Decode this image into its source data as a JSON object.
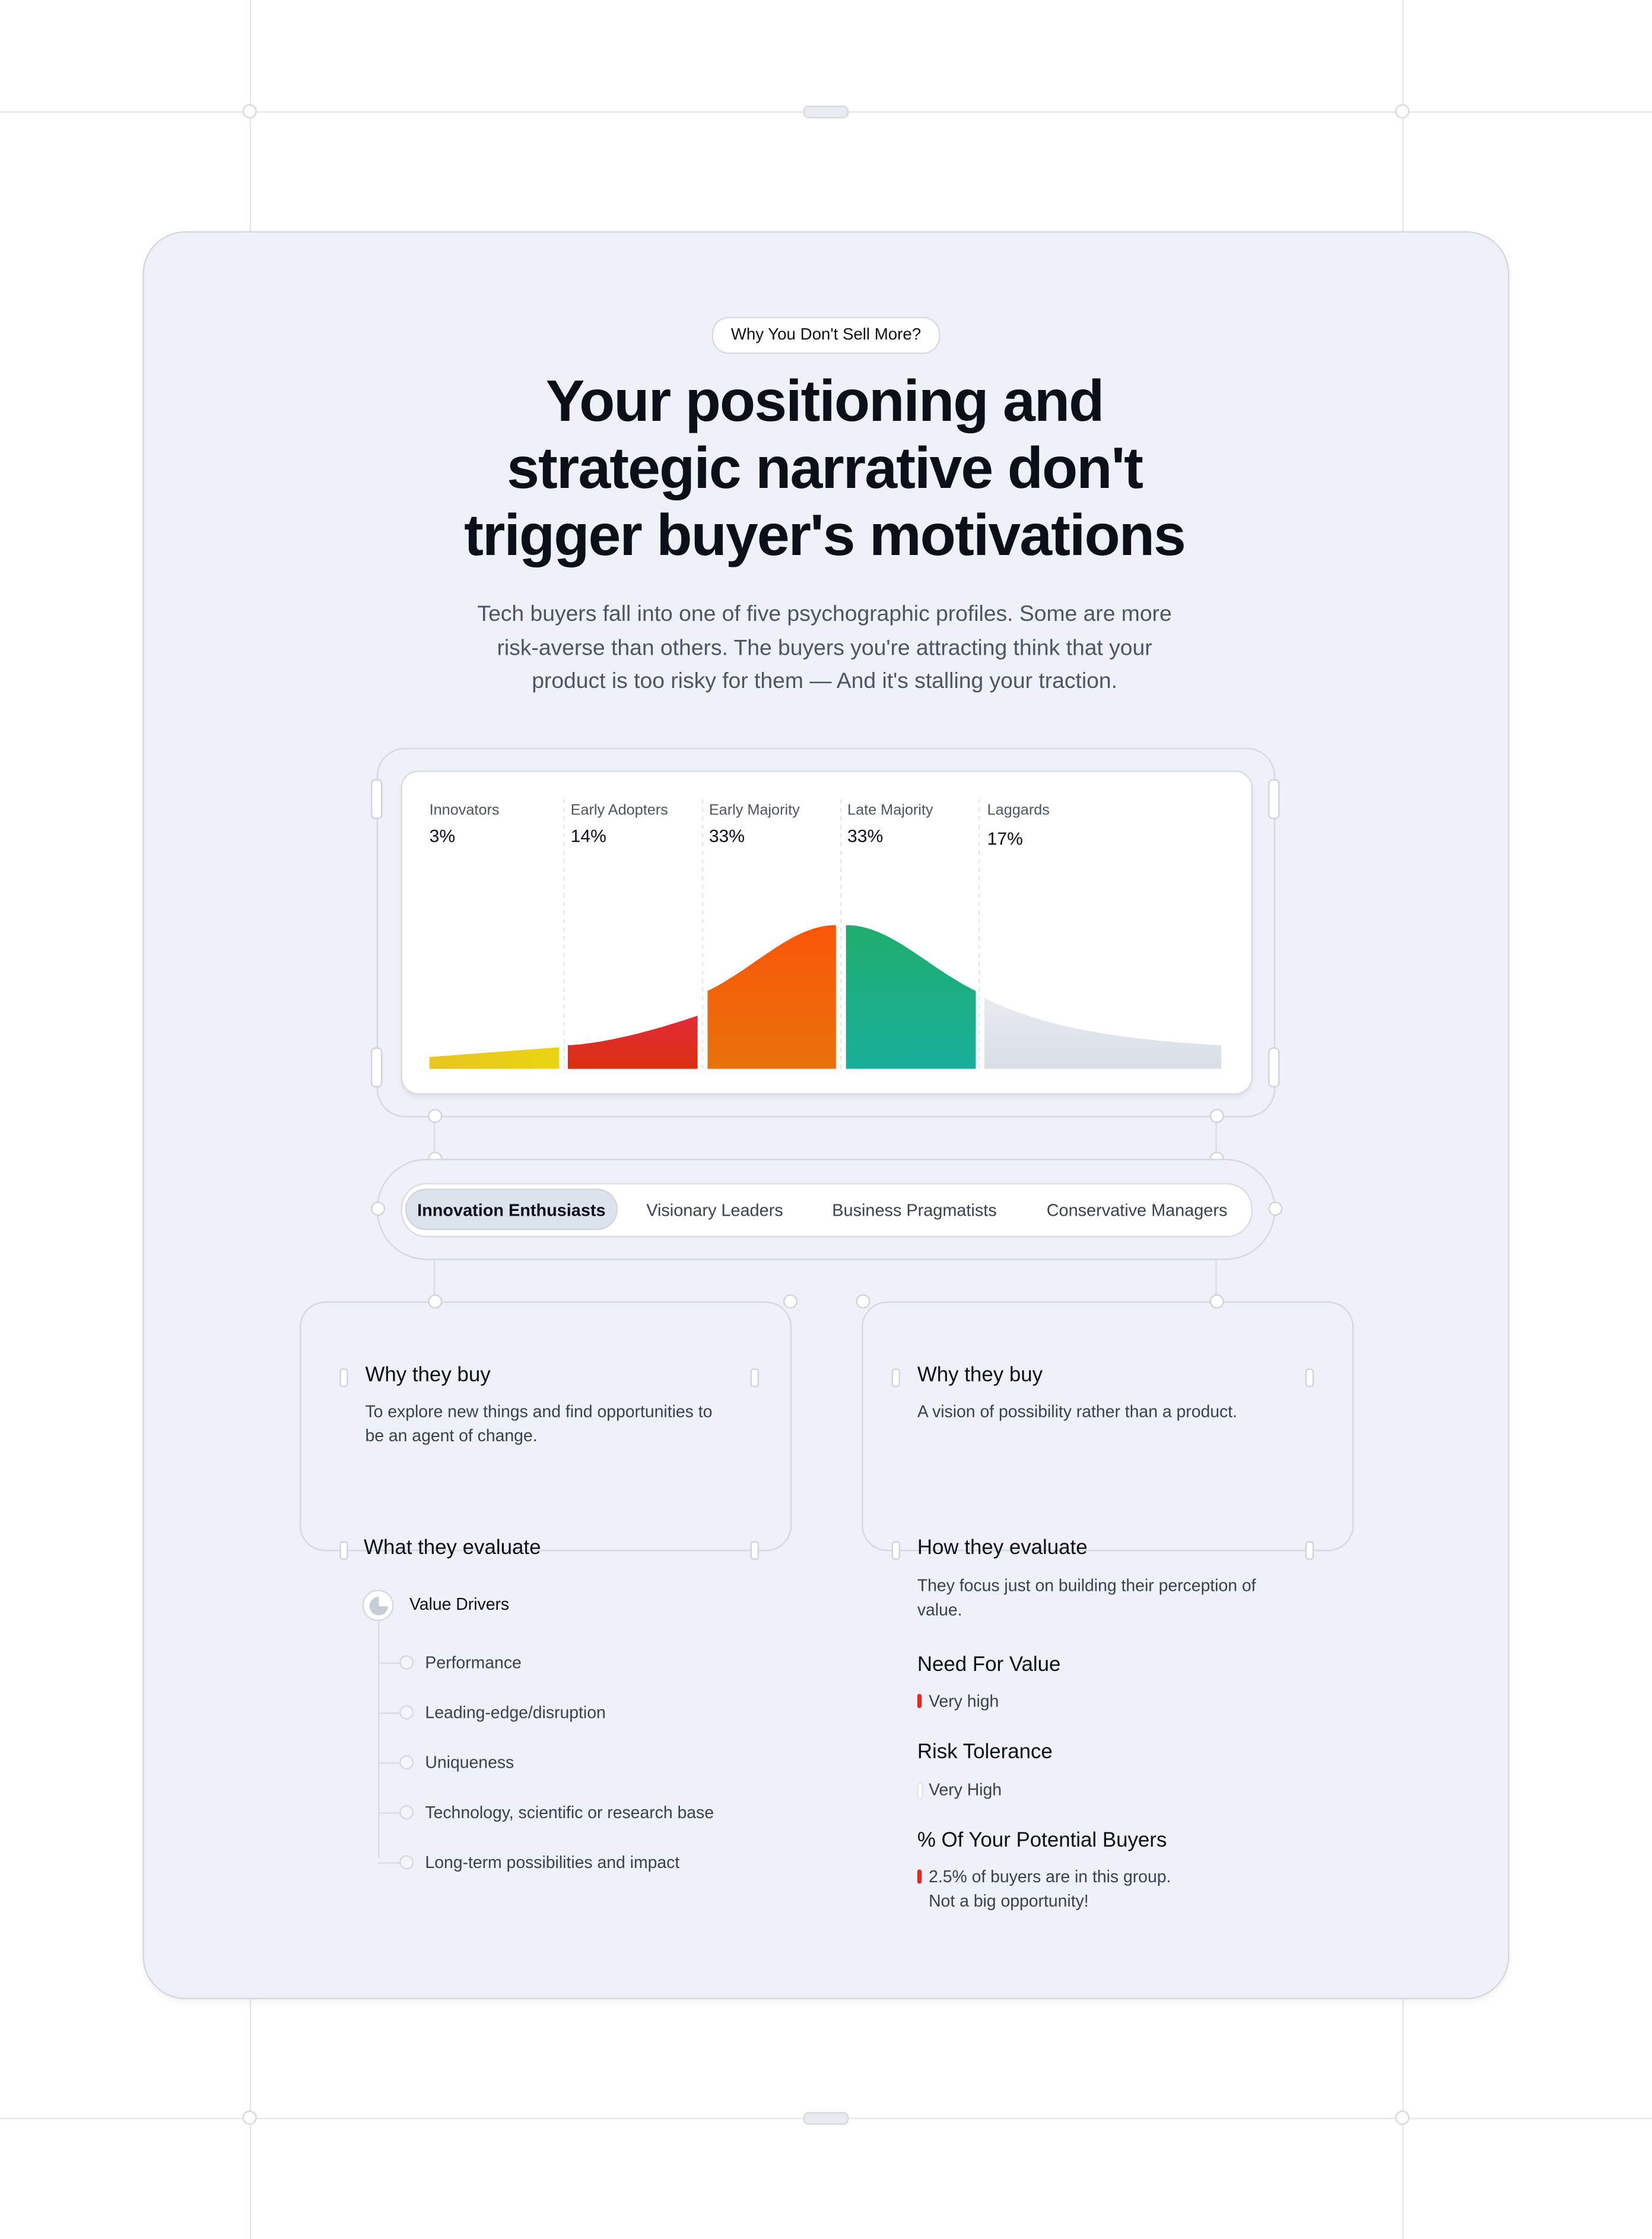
{
  "badge": "Why You Don't Sell More?",
  "title": [
    "Your positioning and",
    "strategic narrative don't",
    "trigger buyer's motivations"
  ],
  "subtitle": [
    "Tech buyers fall into one of five psychographic profiles. Some are more",
    "risk-averse than others. The buyers you're attracting think that your",
    "product is too risky for them — And it's stalling your traction."
  ],
  "chart_data": {
    "type": "area",
    "categories": [
      "Innovators",
      "Early Adopters",
      "Early Majority",
      "Late Majority",
      "Laggards"
    ],
    "labels": [
      "3%",
      "14%",
      "33%",
      "33%",
      "17%"
    ],
    "values": [
      3,
      14,
      33,
      33,
      17
    ],
    "colors": [
      "#e8c81a",
      "#dc2d26",
      "#f4620e",
      "#19ab8a",
      "#dde2ea"
    ]
  },
  "tabs": [
    {
      "label": "Innovation Enthusiasts",
      "active": true
    },
    {
      "label": "Visionary Leaders",
      "active": false
    },
    {
      "label": "Business Pragmatists",
      "active": false
    },
    {
      "label": "Conservative Managers",
      "active": false
    }
  ],
  "left": {
    "why_title": "Why they buy",
    "why_text": "To explore new things and find opportunities to be an agent of change.",
    "eval_title": "What they evaluate",
    "drivers_title": "Value Drivers",
    "drivers": [
      "Performance",
      "Leading-edge/disruption",
      "Uniqueness",
      "Technology, scientific or research base",
      "Long-term possibilities and impact"
    ]
  },
  "right": {
    "why_title": "Why they buy",
    "why_text": "A vision of possibility rather than a product.",
    "eval_title": "How they evaluate",
    "eval_text": "They focus just on building their perception of value.",
    "need_title": "Need For Value",
    "need_value": "Very high",
    "risk_title": "Risk Tolerance",
    "risk_value": "Very High",
    "pct_title": "% Of Your Potential Buyers",
    "pct_line1": "2.5% of buyers are in this group.",
    "pct_line2": "Not a big opportunity!",
    "accent": "#dc2d26"
  }
}
